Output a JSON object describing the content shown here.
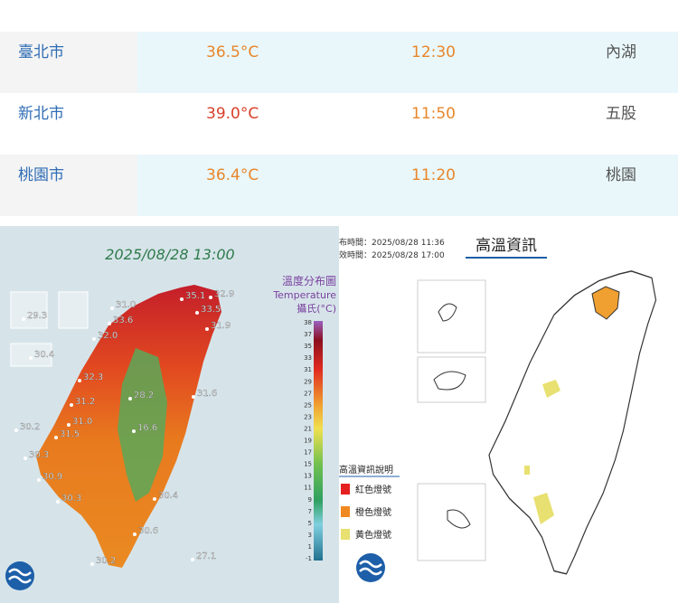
{
  "table": {
    "rows": [
      [
        "臺北市",
        "36.5°C",
        "12:30",
        "內湖"
      ],
      [
        "新北市",
        "39.0°C",
        "11:50",
        "五股"
      ],
      [
        "桃園市",
        "36.4°C",
        "11:20",
        "桃園"
      ]
    ]
  },
  "temperature_map": {
    "timestamp": "2025/08/28 13:00",
    "title": "溫度分布圖",
    "subtitle": "Temperature",
    "unit": "攝氏(°C)",
    "scale_labels": [
      "38",
      "37",
      "35",
      "33",
      "31",
      "29",
      "27",
      "25",
      "23",
      "21",
      "19",
      "17",
      "15",
      "13",
      "11",
      "9",
      "7",
      "5",
      "3",
      "1",
      "-1"
    ],
    "stations": [
      "35.1",
      "32.9",
      "33.5",
      "31.0",
      "33.6",
      "31.9",
      "32.0",
      "29.3",
      "30.4",
      "32.3",
      "28.2",
      "31.6",
      "31.2",
      "31.0",
      "16.6",
      "31.5",
      "30.2",
      "30.3",
      "30.9",
      "30.3",
      "30.4",
      "30.6",
      "30.2",
      "27.1"
    ]
  },
  "heat_map": {
    "issued": "布時間：2025/08/28 11:36",
    "valid": "效時間：2025/08/28 17:00",
    "title": "高溫資訊",
    "legend_title": "高溫資訊說明",
    "legend": [
      "紅色燈號",
      "橙色燈號",
      "黃色燈號"
    ]
  }
}
